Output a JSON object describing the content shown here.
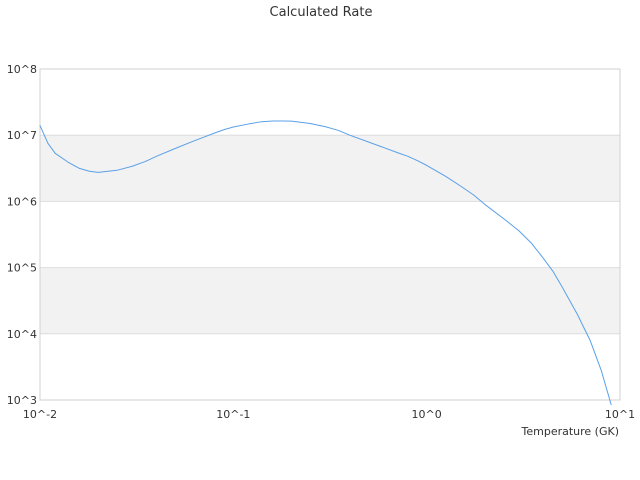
{
  "chart_data": {
    "type": "line",
    "title": "Calculated Rate",
    "xlabel": "Temperature (GK)",
    "ylabel": "",
    "xscale": "log",
    "yscale": "log",
    "xlim": [
      0.01,
      10
    ],
    "ylim": [
      1000,
      100000000
    ],
    "x_tick_labels": [
      "10^-2",
      "10^-1",
      "10^0",
      "10^1"
    ],
    "y_tick_labels": [
      "10^3",
      "10^4",
      "10^5",
      "10^6",
      "10^7",
      "10^8"
    ],
    "alternating_bands": true,
    "legend": "none",
    "series": [
      {
        "x": [
          0.01,
          0.011,
          0.012,
          0.014,
          0.016,
          0.018,
          0.02,
          0.025,
          0.03,
          0.035,
          0.04,
          0.05,
          0.06,
          0.07,
          0.08,
          0.09,
          0.1,
          0.12,
          0.14,
          0.16,
          0.18,
          0.2,
          0.25,
          0.3,
          0.35,
          0.4,
          0.5,
          0.6,
          0.7,
          0.8,
          0.9,
          1.0,
          1.25,
          1.5,
          1.75,
          2.0,
          2.5,
          3.0,
          3.5,
          4.0,
          4.5,
          5.0,
          6.0,
          7.0,
          8.0,
          9.0
        ],
        "values": [
          14000000,
          7500000,
          5300000,
          3900000,
          3150000,
          2850000,
          2750000,
          2950000,
          3400000,
          4000000,
          4800000,
          6300000,
          7800000,
          9300000,
          10800000,
          12200000,
          13300000,
          14800000,
          16000000,
          16400000,
          16400000,
          16300000,
          15000000,
          13400000,
          11800000,
          10000000,
          7900000,
          6500000,
          5500000,
          4800000,
          4100000,
          3500000,
          2400000,
          1700000,
          1250000,
          900000,
          550000,
          360000,
          230000,
          140000,
          88000,
          52000,
          20000,
          8000,
          2800,
          850
        ]
      }
    ]
  },
  "colors": {
    "line": "#5aa0e8",
    "band": "#f2f2f2",
    "gridline": "#dddddd",
    "frame": "#d0d0d0",
    "text": "#333333"
  }
}
